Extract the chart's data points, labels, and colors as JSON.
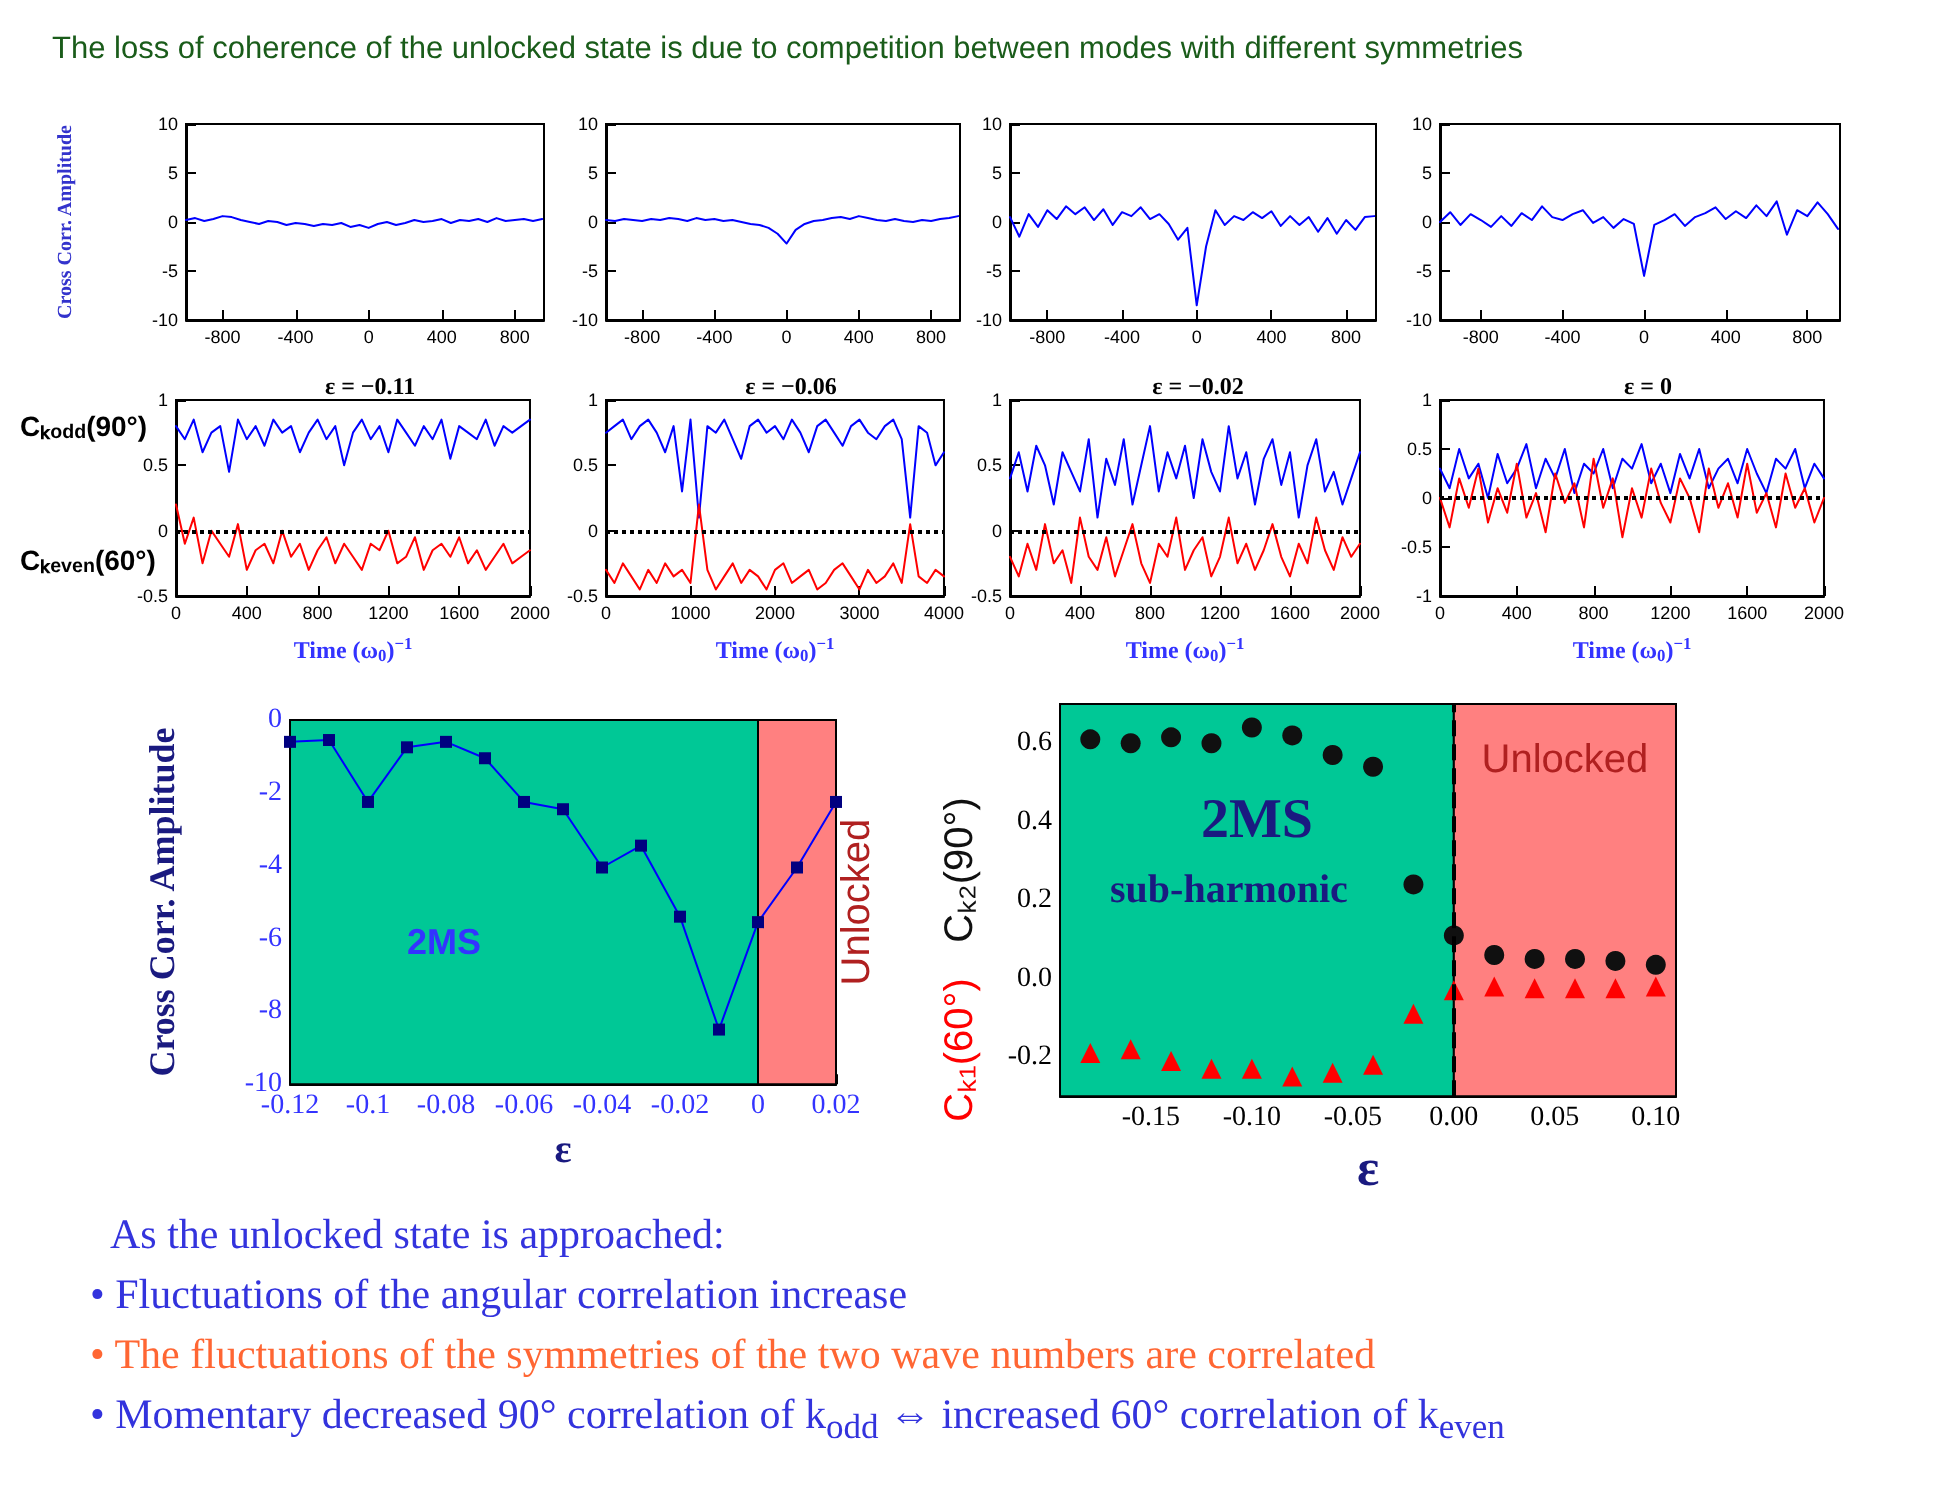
{
  "chart_data": [
    {
      "type": "other",
      "title": "The loss of coherence of the unlocked state is due to competition between modes with different symmetries"
    },
    {
      "type": "line",
      "ylabel": "Cross Corr. Amplitude",
      "color": "#0000ff",
      "x": [
        -1000,
        -950,
        -900,
        -850,
        -800,
        -750,
        -700,
        -650,
        -600,
        -550,
        -500,
        -450,
        -400,
        -350,
        -300,
        -250,
        -200,
        -150,
        -100,
        -50,
        0,
        50,
        100,
        150,
        200,
        250,
        300,
        350,
        400,
        450,
        500,
        550,
        600,
        650,
        700,
        750,
        800,
        850,
        900,
        950
      ],
      "values": [
        0.2,
        0.4,
        0.1,
        0.3,
        0.6,
        0.5,
        0.2,
        0,
        -0.2,
        0.1,
        0,
        -0.3,
        -0.1,
        -0.2,
        -0.4,
        -0.2,
        -0.3,
        -0.1,
        -0.5,
        -0.3,
        -0.6,
        -0.2,
        0,
        -0.3,
        -0.1,
        0.2,
        0,
        0.1,
        0.3,
        -0.1,
        0.2,
        0.1,
        0.3,
        0,
        0.4,
        0.1,
        0.2,
        0.3,
        0.1,
        0.3
      ],
      "xlim": [
        -1000,
        960
      ],
      "xticks": [
        -800,
        -400,
        0,
        400,
        800
      ],
      "ylim": [
        -10,
        10
      ],
      "yticks": [
        -10,
        -5,
        0,
        5,
        10
      ]
    },
    {
      "type": "line",
      "color": "#0000ff",
      "x": [
        -1000,
        -950,
        -900,
        -850,
        -800,
        -750,
        -700,
        -650,
        -600,
        -550,
        -500,
        -450,
        -400,
        -350,
        -300,
        -250,
        -200,
        -150,
        -100,
        -50,
        0,
        50,
        100,
        150,
        200,
        250,
        300,
        350,
        400,
        450,
        500,
        550,
        600,
        650,
        700,
        750,
        800,
        850,
        900,
        950
      ],
      "values": [
        0.2,
        0.1,
        0.3,
        0.2,
        0.1,
        0.3,
        0.2,
        0.4,
        0.3,
        0.1,
        0.4,
        0.2,
        0.3,
        0.1,
        0.2,
        0,
        -0.2,
        -0.3,
        -0.6,
        -1.2,
        -2.2,
        -0.8,
        -0.2,
        0.1,
        0.2,
        0.4,
        0.5,
        0.3,
        0.6,
        0.4,
        0.2,
        0.1,
        0.3,
        0.1,
        0,
        0.2,
        0.1,
        0.3,
        0.4,
        0.6
      ],
      "xlim": [
        -1000,
        960
      ],
      "xticks": [
        -800,
        -400,
        0,
        400,
        800
      ],
      "ylim": [
        -10,
        10
      ],
      "yticks": [
        -10,
        -5,
        0,
        5,
        10
      ]
    },
    {
      "type": "line",
      "color": "#0000ff",
      "x": [
        -1000,
        -950,
        -900,
        -850,
        -800,
        -750,
        -700,
        -650,
        -600,
        -550,
        -500,
        -450,
        -400,
        -350,
        -300,
        -250,
        -200,
        -150,
        -100,
        -50,
        0,
        50,
        100,
        150,
        200,
        250,
        300,
        350,
        400,
        450,
        500,
        550,
        600,
        650,
        700,
        750,
        800,
        850,
        900,
        950
      ],
      "values": [
        0.5,
        -1.5,
        0.8,
        -0.5,
        1.2,
        0.3,
        1.6,
        0.8,
        1.5,
        0.2,
        1.3,
        -0.3,
        1.0,
        0.6,
        1.5,
        0.3,
        0.8,
        -0.2,
        -1.8,
        -0.6,
        -8.5,
        -2.5,
        1.2,
        -0.3,
        0.6,
        0.2,
        1.0,
        0.4,
        1.1,
        -0.4,
        0.6,
        -0.3,
        0.5,
        -1.0,
        0.4,
        -1.2,
        0.2,
        -0.8,
        0.5,
        0.6
      ],
      "xlim": [
        -1000,
        960
      ],
      "xticks": [
        -800,
        -400,
        0,
        400,
        800
      ],
      "ylim": [
        -10,
        10
      ],
      "yticks": [
        -10,
        -5,
        0,
        5,
        10
      ]
    },
    {
      "type": "line",
      "color": "#0000ff",
      "x": [
        -1000,
        -950,
        -900,
        -850,
        -800,
        -750,
        -700,
        -650,
        -600,
        -550,
        -500,
        -450,
        -400,
        -350,
        -300,
        -250,
        -200,
        -150,
        -100,
        -50,
        0,
        50,
        100,
        150,
        200,
        250,
        300,
        350,
        400,
        450,
        500,
        550,
        600,
        650,
        700,
        750,
        800,
        850,
        900,
        950
      ],
      "values": [
        0,
        1.0,
        -0.3,
        0.8,
        0.2,
        -0.5,
        0.6,
        -0.4,
        0.9,
        0.2,
        1.6,
        0.5,
        0.2,
        0.8,
        1.2,
        -0.1,
        0.5,
        -0.6,
        0.3,
        -0.2,
        -5.5,
        -0.3,
        0.2,
        0.8,
        -0.4,
        0.5,
        0.9,
        1.5,
        0.3,
        1.1,
        0.4,
        1.7,
        0.6,
        2.1,
        -1.3,
        1.2,
        0.6,
        2.0,
        0.8,
        -0.7
      ],
      "xlim": [
        -1000,
        960
      ],
      "xticks": [
        -800,
        -400,
        0,
        400,
        800
      ],
      "ylim": [
        -10,
        10
      ],
      "yticks": [
        -10,
        -5,
        0,
        5,
        10
      ]
    },
    {
      "type": "line",
      "title": "ε = −0.11",
      "xlabel": "Time (ω$_{0}$)$^{−1}$",
      "x": [
        0,
        50,
        100,
        150,
        200,
        250,
        300,
        350,
        400,
        450,
        500,
        550,
        600,
        650,
        700,
        750,
        800,
        850,
        900,
        950,
        1000,
        1050,
        1100,
        1150,
        1200,
        1250,
        1300,
        1350,
        1400,
        1450,
        1500,
        1550,
        1600,
        1650,
        1700,
        1750,
        1800,
        1850,
        1900,
        1950,
        2000
      ],
      "series": [
        {
          "name": "Cₖ$_{odd}$(90°)",
          "color": "#0000ff",
          "values": [
            0.8,
            0.7,
            0.85,
            0.6,
            0.75,
            0.8,
            0.45,
            0.85,
            0.7,
            0.8,
            0.65,
            0.85,
            0.75,
            0.8,
            0.6,
            0.75,
            0.85,
            0.7,
            0.8,
            0.5,
            0.75,
            0.85,
            0.7,
            0.8,
            0.6,
            0.85,
            0.75,
            0.65,
            0.8,
            0.7,
            0.85,
            0.55,
            0.8,
            0.75,
            0.7,
            0.85,
            0.65,
            0.8,
            0.75,
            0.8,
            0.85
          ]
        },
        {
          "name": "Cₖ$_{even}$(60°)",
          "color": "#ff0000",
          "values": [
            0.2,
            -0.1,
            0.1,
            -0.25,
            0,
            -0.1,
            -0.2,
            0.05,
            -0.3,
            -0.15,
            -0.1,
            -0.25,
            0,
            -0.2,
            -0.1,
            -0.3,
            -0.15,
            -0.05,
            -0.25,
            -0.1,
            -0.2,
            -0.3,
            -0.1,
            -0.15,
            0,
            -0.25,
            -0.2,
            -0.05,
            -0.3,
            -0.15,
            -0.1,
            -0.2,
            -0.05,
            -0.25,
            -0.15,
            -0.3,
            -0.2,
            -0.1,
            -0.25,
            -0.2,
            -0.15
          ]
        }
      ],
      "xlim": [
        0,
        2000
      ],
      "xticks": [
        0,
        400,
        800,
        1200,
        1600,
        2000
      ],
      "ylim": [
        -0.5,
        1
      ],
      "yticks": [
        -0.5,
        0,
        0.5,
        1
      ],
      "ref_lines": [
        {
          "axis": "y",
          "value": 0,
          "color": "#000000",
          "line_style": "dotted"
        }
      ]
    },
    {
      "type": "line",
      "title": "ε = −0.06",
      "xlabel": "Time (ω$_{0}$)$^{−1}$",
      "x": [
        0,
        100,
        200,
        300,
        400,
        500,
        600,
        700,
        800,
        900,
        1000,
        1100,
        1200,
        1300,
        1400,
        1500,
        1600,
        1700,
        1800,
        1900,
        2000,
        2100,
        2200,
        2300,
        2400,
        2500,
        2600,
        2700,
        2800,
        2900,
        3000,
        3100,
        3200,
        3300,
        3400,
        3500,
        3600,
        3700,
        3800,
        3900,
        4000
      ],
      "series": [
        {
          "color": "#0000ff",
          "values": [
            0.75,
            0.8,
            0.85,
            0.7,
            0.8,
            0.85,
            0.75,
            0.6,
            0.8,
            0.3,
            0.85,
            0.1,
            0.8,
            0.75,
            0.85,
            0.7,
            0.55,
            0.8,
            0.85,
            0.75,
            0.8,
            0.7,
            0.85,
            0.75,
            0.6,
            0.8,
            0.85,
            0.75,
            0.65,
            0.8,
            0.85,
            0.75,
            0.7,
            0.8,
            0.85,
            0.7,
            0.1,
            0.8,
            0.75,
            0.5,
            0.6
          ]
        },
        {
          "color": "#ff0000",
          "values": [
            -0.3,
            -0.4,
            -0.25,
            -0.35,
            -0.45,
            -0.3,
            -0.4,
            -0.25,
            -0.35,
            -0.3,
            -0.4,
            0.2,
            -0.3,
            -0.45,
            -0.35,
            -0.25,
            -0.4,
            -0.3,
            -0.35,
            -0.45,
            -0.3,
            -0.25,
            -0.4,
            -0.35,
            -0.3,
            -0.45,
            -0.4,
            -0.3,
            -0.25,
            -0.35,
            -0.45,
            -0.3,
            -0.4,
            -0.35,
            -0.25,
            -0.4,
            0.05,
            -0.35,
            -0.4,
            -0.3,
            -0.35
          ]
        }
      ],
      "xlim": [
        0,
        4000
      ],
      "xticks": [
        0,
        1000,
        2000,
        3000,
        4000
      ],
      "ylim": [
        -0.5,
        1
      ],
      "yticks": [
        -0.5,
        0,
        0.5,
        1
      ],
      "ref_lines": [
        {
          "axis": "y",
          "value": 0,
          "color": "#000000",
          "line_style": "dotted"
        }
      ]
    },
    {
      "type": "line",
      "title": "ε = −0.02",
      "xlabel": "Time (ω$_{0}$)$^{−1}$",
      "x": [
        0,
        50,
        100,
        150,
        200,
        250,
        300,
        350,
        400,
        450,
        500,
        550,
        600,
        650,
        700,
        750,
        800,
        850,
        900,
        950,
        1000,
        1050,
        1100,
        1150,
        1200,
        1250,
        1300,
        1350,
        1400,
        1450,
        1500,
        1550,
        1600,
        1650,
        1700,
        1750,
        1800,
        1850,
        1900,
        1950,
        2000
      ],
      "series": [
        {
          "color": "#0000ff",
          "values": [
            0.4,
            0.6,
            0.3,
            0.65,
            0.5,
            0.2,
            0.6,
            0.45,
            0.3,
            0.7,
            0.1,
            0.55,
            0.35,
            0.7,
            0.2,
            0.5,
            0.8,
            0.3,
            0.6,
            0.4,
            0.65,
            0.25,
            0.7,
            0.45,
            0.3,
            0.8,
            0.4,
            0.6,
            0.2,
            0.55,
            0.7,
            0.35,
            0.6,
            0.1,
            0.5,
            0.7,
            0.3,
            0.45,
            0.2,
            0.4,
            0.6
          ]
        },
        {
          "color": "#ff0000",
          "values": [
            -0.2,
            -0.35,
            -0.1,
            -0.3,
            0.05,
            -0.25,
            -0.15,
            -0.4,
            0.1,
            -0.2,
            -0.3,
            -0.05,
            -0.35,
            -0.15,
            0.05,
            -0.25,
            -0.4,
            -0.1,
            -0.2,
            0.1,
            -0.3,
            -0.15,
            -0.05,
            -0.35,
            -0.2,
            0.1,
            -0.25,
            -0.1,
            -0.3,
            -0.15,
            0.05,
            -0.2,
            -0.35,
            -0.1,
            -0.25,
            0.1,
            -0.15,
            -0.3,
            -0.05,
            -0.2,
            -0.1
          ]
        }
      ],
      "xlim": [
        0,
        2000
      ],
      "xticks": [
        0,
        400,
        800,
        1200,
        1600,
        2000
      ],
      "ylim": [
        -0.5,
        1
      ],
      "yticks": [
        -0.5,
        0,
        0.5,
        1
      ],
      "ref_lines": [
        {
          "axis": "y",
          "value": 0,
          "color": "#000000",
          "line_style": "dotted"
        }
      ]
    },
    {
      "type": "line",
      "title": "ε = 0",
      "xlabel": "Time (ω$_{0}$)$^{−1}$",
      "x": [
        0,
        50,
        100,
        150,
        200,
        250,
        300,
        350,
        400,
        450,
        500,
        550,
        600,
        650,
        700,
        750,
        800,
        850,
        900,
        950,
        1000,
        1050,
        1100,
        1150,
        1200,
        1250,
        1300,
        1350,
        1400,
        1450,
        1500,
        1550,
        1600,
        1650,
        1700,
        1750,
        1800,
        1850,
        1900,
        1950,
        2000
      ],
      "series": [
        {
          "color": "#0000ff",
          "values": [
            0.3,
            0.1,
            0.5,
            0.2,
            0.35,
            0,
            0.45,
            0.15,
            0.3,
            0.55,
            0.1,
            0.4,
            0.2,
            0.5,
            0.05,
            0.35,
            0.25,
            0.5,
            0.1,
            0.4,
            0.3,
            0.55,
            0.15,
            0.35,
            0.05,
            0.45,
            0.2,
            0.5,
            0.1,
            0.3,
            0.4,
            0.15,
            0.5,
            0.25,
            0.05,
            0.4,
            0.3,
            0.5,
            0.1,
            0.35,
            0.2
          ]
        },
        {
          "color": "#ff0000",
          "values": [
            0,
            -0.3,
            0.2,
            -0.1,
            0.3,
            -0.25,
            0.1,
            -0.15,
            0.35,
            -0.2,
            0.05,
            -0.35,
            0.25,
            -0.05,
            0.15,
            -0.3,
            0.4,
            -0.1,
            0.2,
            -0.4,
            0.1,
            -0.2,
            0.3,
            -0.05,
            -0.25,
            0.2,
            0,
            -0.35,
            0.3,
            -0.1,
            0.15,
            -0.2,
            0.35,
            -0.15,
            0.05,
            -0.3,
            0.25,
            -0.1,
            0.1,
            -0.25,
            0
          ]
        }
      ],
      "xlim": [
        0,
        2000
      ],
      "xticks": [
        0,
        400,
        800,
        1200,
        1600,
        2000
      ],
      "ylim": [
        -1,
        1
      ],
      "yticks": [
        -1,
        -0.5,
        0,
        0.5,
        1
      ],
      "ref_lines": [
        {
          "axis": "y",
          "value": 0,
          "color": "#000000",
          "line_style": "dotted"
        }
      ]
    },
    {
      "type": "line",
      "xlabel": "ε",
      "ylabel": "Cross Corr. Amplitude",
      "marker": "square",
      "color": "#000080",
      "x": [
        -0.12,
        -0.11,
        -0.1,
        -0.09,
        -0.08,
        -0.07,
        -0.06,
        -0.05,
        -0.04,
        -0.03,
        -0.02,
        -0.01,
        0,
        0.01,
        0.02
      ],
      "values": [
        -0.6,
        -0.55,
        -2.25,
        -0.75,
        -0.6,
        -1.05,
        -2.25,
        -2.45,
        -4.05,
        -3.45,
        -5.4,
        -8.5,
        -5.55,
        -4.05,
        -2.25
      ],
      "xlim": [
        -0.12,
        0.02
      ],
      "xticks": [
        -0.12,
        -0.1,
        -0.08,
        -0.06,
        -0.04,
        -0.02,
        0,
        0.02
      ],
      "ylim": [
        -10,
        0
      ],
      "yticks": [
        -10,
        -8,
        -6,
        -4,
        -2,
        0
      ],
      "bands": [
        {
          "axis": "x",
          "from": -0.12,
          "to": 0,
          "color": "#00c896",
          "label": "2MS"
        },
        {
          "axis": "x",
          "from": 0,
          "to": 0.02,
          "color": "#ff8080",
          "label": "Unlocked"
        }
      ]
    },
    {
      "type": "scatter",
      "xlabel": "ε",
      "x": [
        -0.18,
        -0.16,
        -0.14,
        -0.12,
        -0.1,
        -0.08,
        -0.06,
        -0.04,
        -0.02,
        0,
        0.02,
        0.04,
        0.06,
        0.08,
        0.1
      ],
      "series": [
        {
          "name": "Cₖ₂(90°)",
          "color": "#101010",
          "marker": "circle",
          "values": [
            0.61,
            0.6,
            0.615,
            0.6,
            0.64,
            0.62,
            0.57,
            0.54,
            0.24,
            0.11,
            0.06,
            0.05,
            0.05,
            0.045,
            0.035
          ]
        },
        {
          "name": "Cₖ₁(60°)",
          "color": "#ff0000",
          "marker": "triangle",
          "values": [
            -0.19,
            -0.18,
            -0.21,
            -0.23,
            -0.23,
            -0.25,
            -0.24,
            -0.22,
            -0.09,
            -0.03,
            -0.02,
            -0.025,
            -0.025,
            -0.025,
            -0.02
          ]
        }
      ],
      "xlim": [
        -0.195,
        0.11
      ],
      "xticks": [
        {
          "value": -0.15,
          "label": "-0.15"
        },
        {
          "value": -0.1,
          "label": "-0.10"
        },
        {
          "value": -0.05,
          "label": "-0.05"
        },
        {
          "value": 0,
          "label": "0.00"
        },
        {
          "value": 0.05,
          "label": "0.05"
        },
        {
          "value": 0.1,
          "label": "0.10"
        }
      ],
      "ylim": [
        -0.3,
        0.7
      ],
      "yticks": [
        {
          "value": -0.2,
          "label": "-0.2"
        },
        {
          "value": 0,
          "label": "0.0"
        },
        {
          "value": 0.2,
          "label": "0.2"
        },
        {
          "value": 0.4,
          "label": "0.4"
        },
        {
          "value": 0.6,
          "label": "0.6"
        }
      ],
      "bands": [
        {
          "axis": "x",
          "from": -0.195,
          "to": 0,
          "color": "#00c896",
          "label": "2MS"
        },
        {
          "axis": "x",
          "from": 0,
          "to": 0.11,
          "color": "#ff8080",
          "label": "Unlocked"
        }
      ],
      "ref_lines": [
        {
          "axis": "x",
          "value": 0,
          "color": "#000000",
          "line_style": "dashed"
        }
      ],
      "annotations": [
        "sub-harmonic"
      ]
    },
    {
      "type": "other",
      "annotations": [
        "As the unlocked state is approached:",
        "• Fluctuations of the angular correlation increase",
        "• The fluctuations of the symmetries of the two wave numbers are correlated",
        "• Momentary decreased 90° correlation of k$_{odd}$ ⇔ increased 60° correlation of k$_{even}$"
      ]
    }
  ]
}
